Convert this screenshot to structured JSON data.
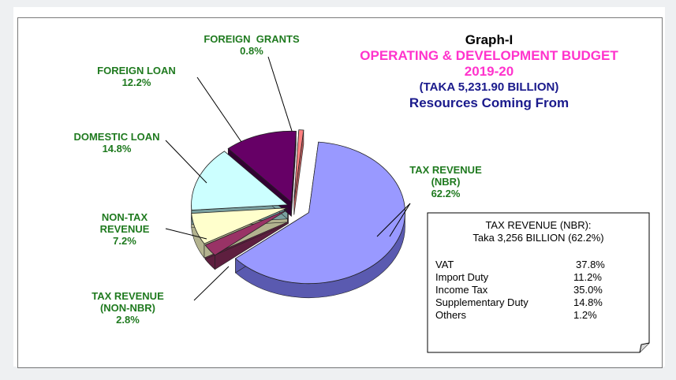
{
  "title": {
    "line1": "Graph-I",
    "line2": "OPERATING & DEVELOPMENT BUDGET",
    "line3": "2019-20",
    "line4": "(TAKA 5,231.90 BILLION)",
    "line5": "Resources Coming From"
  },
  "chart_data": {
    "type": "pie",
    "style": "3d-exploded",
    "slices": [
      {
        "label": "TAX REVENUE (NBR)",
        "label_lines": [
          "TAX REVENUE",
          "(NBR)"
        ],
        "value": 62.2,
        "value_text": "62.2%",
        "color": "#9999ff",
        "side": "#5a5ab0"
      },
      {
        "label": "TAX REVENUE (NON-NBR)",
        "label_lines": [
          "TAX REVENUE",
          "(NON-NBR)"
        ],
        "value": 2.8,
        "value_text": "2.8%",
        "color": "#993366",
        "side": "#5e1f3f"
      },
      {
        "label": "NON-TAX REVENUE",
        "label_lines": [
          "NON-TAX",
          "REVENUE"
        ],
        "value": 7.2,
        "value_text": "7.2%",
        "color": "#ffffcc",
        "side": "#b3b38f"
      },
      {
        "label": "DOMESTIC LOAN",
        "label_lines": [
          "DOMESTIC LOAN"
        ],
        "value": 14.8,
        "value_text": "14.8%",
        "color": "#ccffff",
        "side": "#7aa0a0"
      },
      {
        "label": "FOREIGN LOAN",
        "label_lines": [
          "FOREIGN LOAN"
        ],
        "value": 12.2,
        "value_text": "12.2%",
        "color": "#660066",
        "side": "#330033"
      },
      {
        "label": "FOREIGN GRANTS",
        "label_lines": [
          "FOREIGN  GRANTS"
        ],
        "value": 0.8,
        "value_text": "0.8%",
        "color": "#ff8080",
        "side": "#b35a5a"
      }
    ]
  },
  "breakdown": {
    "heading": "TAX REVENUE (NBR):",
    "subheading": "Taka  3,256 BILLION  (62.2%)",
    "rows": [
      {
        "name": "VAT",
        "value": "37.8%"
      },
      {
        "name": "Import Duty",
        "value": "11.2%"
      },
      {
        "name": "Income Tax",
        "value": "35.0%"
      },
      {
        "name": "Supplementary Duty",
        "value": "14.8%"
      },
      {
        "name": "Others",
        "value": "1.2%"
      }
    ]
  }
}
